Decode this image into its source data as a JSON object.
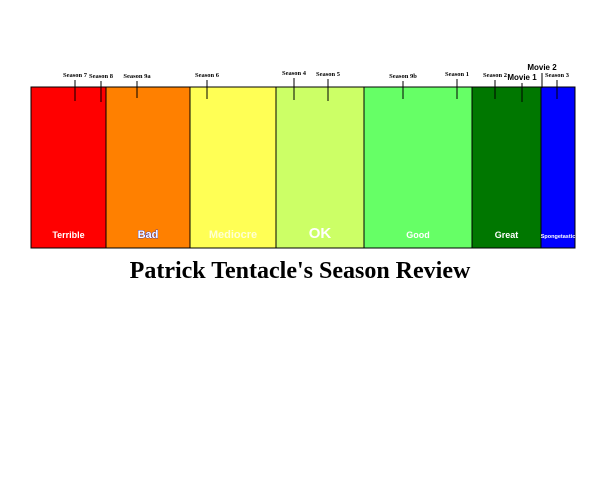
{
  "title": "Patrick Tentacle's Season Review",
  "scale": {
    "zones": [
      {
        "label": "Terrible",
        "color": "#ff0000",
        "text_style": "plain"
      },
      {
        "label": "Bad",
        "color": "#ff8000",
        "text_style": "bad"
      },
      {
        "label": "Mediocre",
        "color": "#ffff55",
        "text_style": "faint"
      },
      {
        "label": "OK",
        "color": "#ccff66",
        "text_style": "large"
      },
      {
        "label": "Good",
        "color": "#66ff66",
        "text_style": "plain"
      },
      {
        "label": "Great",
        "color": "#007700",
        "text_style": "plain"
      },
      {
        "label": "Spongetastic",
        "color": "#0000ff",
        "text_style": "tiny"
      }
    ],
    "markers": [
      {
        "label": "Season 7",
        "zone": "Terrible"
      },
      {
        "label": "Season 8",
        "zone": "Terrible"
      },
      {
        "label": "Season 9a",
        "zone": "Bad"
      },
      {
        "label": "Season 6",
        "zone": "Mediocre"
      },
      {
        "label": "Season 4",
        "zone": "OK"
      },
      {
        "label": "Season 5",
        "zone": "OK"
      },
      {
        "label": "Season 9b",
        "zone": "Good"
      },
      {
        "label": "Season 1",
        "zone": "Good"
      },
      {
        "label": "Season 2",
        "zone": "Great"
      },
      {
        "label": "Movie 1",
        "zone": "Great"
      },
      {
        "label": "Movie 2",
        "zone": "Great"
      },
      {
        "label": "Season 3",
        "zone": "Spongetastic"
      }
    ]
  }
}
